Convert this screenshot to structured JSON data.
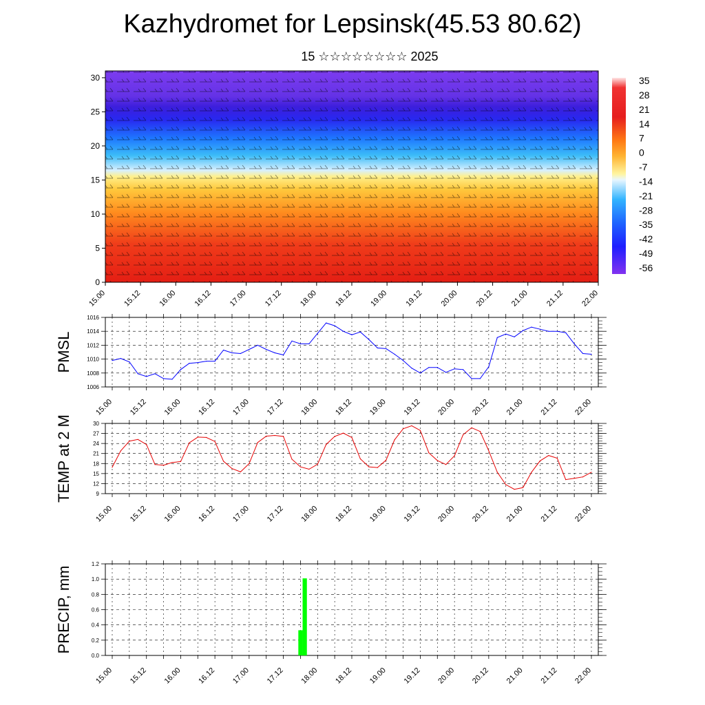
{
  "header": {
    "title": "Kazhydromet for Lepsinsk(45.53 80.62)",
    "subtitle": "15 ☆☆☆☆☆☆☆☆ 2025"
  },
  "time_labels": [
    "15.00",
    "15.12",
    "16.00",
    "16.12",
    "17.00",
    "17.12",
    "18.00",
    "18.12",
    "19.00",
    "19.12",
    "20.00",
    "20.12",
    "21.00",
    "21.12",
    "22.00"
  ],
  "chart_data": [
    {
      "type": "heatmap",
      "title": "",
      "x_ticks": [
        "15.00",
        "15.12",
        "16.00",
        "16.12",
        "17.00",
        "17.12",
        "18.00",
        "18.12",
        "19.00",
        "19.12",
        "20.00",
        "20.12",
        "21.00",
        "21.12",
        "22.00"
      ],
      "y_ticks": [
        "0",
        "5",
        "10",
        "15",
        "20",
        "25",
        "30"
      ],
      "ylim": [
        0,
        31
      ],
      "colorbar_labels": [
        "35",
        "28",
        "21",
        "14",
        "7",
        "0",
        "-7",
        "-14",
        "-21",
        "-28",
        "-35",
        "-42",
        "-49",
        "-56"
      ],
      "colors": {
        "min": "#7a28e6",
        "blue": "#1428ff",
        "cyan": "#1eb4ff",
        "light": "#e6f5ff",
        "yellow": "#fff07a",
        "orange": "#ffa41e",
        "red": "#eb1e1e",
        "max": "#ffe6e6"
      },
      "overlay": "wind barbs"
    },
    {
      "type": "line",
      "ylabel": "PMSL",
      "ylim": [
        1006,
        1016
      ],
      "y_ticks": [
        "1006",
        "1008",
        "1010",
        "1012",
        "1014",
        "1016"
      ],
      "x_ticks": [
        "15.00",
        "15.12",
        "16.00",
        "16.12",
        "17.00",
        "17.12",
        "18.00",
        "18.12",
        "19.00",
        "19.12",
        "20.00",
        "20.12",
        "21.00",
        "21.12",
        "22.00"
      ],
      "color": "#0000ff",
      "values": [
        1009.8,
        1010.1,
        1009.6,
        1007.9,
        1007.5,
        1007.9,
        1007.2,
        1007.1,
        1008.5,
        1009.4,
        1009.5,
        1009.7,
        1009.7,
        1011.3,
        1010.9,
        1010.8,
        1011.4,
        1012.0,
        1011.4,
        1010.9,
        1010.6,
        1012.6,
        1012.2,
        1012.2,
        1013.7,
        1015.2,
        1014.8,
        1014.0,
        1013.5,
        1013.9,
        1012.8,
        1011.6,
        1011.5,
        1010.7,
        1009.8,
        1008.7,
        1008.0,
        1008.8,
        1008.8,
        1008.1,
        1008.6,
        1008.5,
        1007.2,
        1007.2,
        1008.9,
        1013.1,
        1013.6,
        1013.2,
        1014.1,
        1014.6,
        1014.3,
        1014.0,
        1014.0,
        1013.8,
        1012.2,
        1010.8,
        1010.7
      ]
    },
    {
      "type": "line",
      "ylabel": "TEMP at 2 M",
      "ylim": [
        9,
        30
      ],
      "y_ticks": [
        "9",
        "12",
        "15",
        "18",
        "21",
        "24",
        "27",
        "30"
      ],
      "x_ticks": [
        "15.00",
        "15.12",
        "16.00",
        "16.12",
        "17.00",
        "17.12",
        "18.00",
        "18.12",
        "19.00",
        "19.12",
        "20.00",
        "20.12",
        "21.00",
        "21.12",
        "22.00"
      ],
      "color": "#e60000",
      "values": [
        16.9,
        21.8,
        24.7,
        25.2,
        23.7,
        17.7,
        17.5,
        18.3,
        18.6,
        24.2,
        25.9,
        25.8,
        24.6,
        18.7,
        16.5,
        15.5,
        18.0,
        24.3,
        26.2,
        26.4,
        26.1,
        19.3,
        17.0,
        16.3,
        17.8,
        23.7,
        26.1,
        27.1,
        25.8,
        19.4,
        17.0,
        16.8,
        19.0,
        25.1,
        28.4,
        29.3,
        27.9,
        21.2,
        18.9,
        17.7,
        20.3,
        26.6,
        28.7,
        27.6,
        21.8,
        15.4,
        11.7,
        10.3,
        10.8,
        15.4,
        18.8,
        20.4,
        19.6,
        13.2,
        13.6,
        14.0,
        15.4
      ]
    },
    {
      "type": "bar",
      "ylabel": "PRECIP, mm",
      "ylim": [
        0,
        1.2
      ],
      "y_ticks": [
        "0.0",
        "0.2",
        "0.4",
        "0.6",
        "0.8",
        "1.0",
        "1.2"
      ],
      "x_ticks": [
        "15.00",
        "15.12",
        "16.00",
        "16.12",
        "17.00",
        "17.12",
        "18.00",
        "18.12",
        "19.00",
        "19.12",
        "20.00",
        "20.12",
        "21.00",
        "21.12",
        "22.00"
      ],
      "color": "#00ff00",
      "bars": [
        {
          "x": 20.5,
          "value": 0.33
        },
        {
          "x": 20.625,
          "value": 1.01
        }
      ]
    }
  ]
}
